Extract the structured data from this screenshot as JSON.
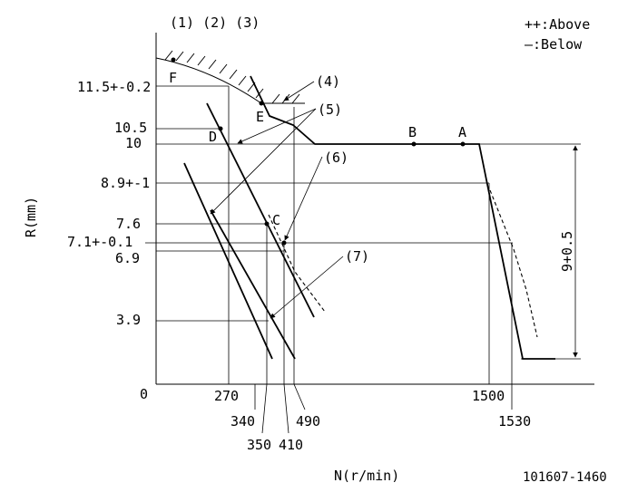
{
  "header": {
    "line_labels": "(1) (2) (3)",
    "legend_above": "++:Above",
    "legend_below": "—:Below"
  },
  "axes": {
    "y_title": "R(mm)",
    "x_title": "N(r/min)",
    "origin": "0"
  },
  "y_ticks": [
    "11.5+-0.2",
    "10.5",
    "10",
    "8.9+-1",
    "7.6",
    "7.1+-0.1",
    "6.9",
    "3.9"
  ],
  "x_ticks": [
    "270",
    "340",
    "350",
    "410",
    "490",
    "1500",
    "1530"
  ],
  "points": [
    "F",
    "E",
    "D",
    "B",
    "A",
    "C"
  ],
  "callouts": [
    "(4)",
    "(5)",
    "(6)",
    "(7)"
  ],
  "tolerance": "9+0.5",
  "part_number": "101607-1460"
}
